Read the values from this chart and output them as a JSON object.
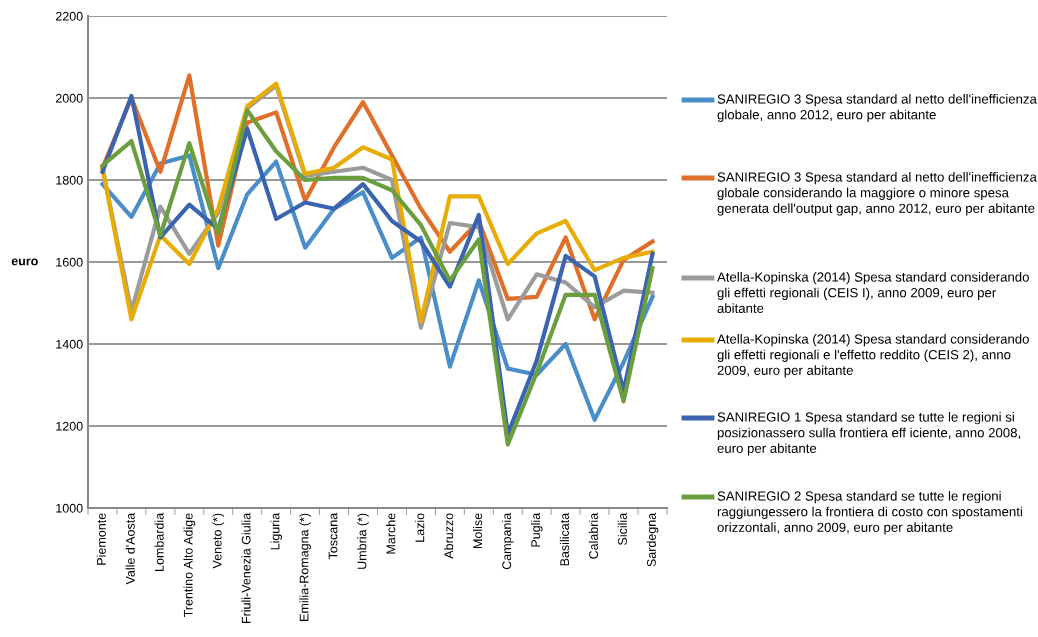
{
  "chart_data": {
    "type": "line",
    "ylabel": "euro",
    "categories": [
      "Piemonte",
      "Valle d'Aosta",
      "Lombardia",
      "Trentino Alto Adige",
      "Veneto (*)",
      "Friuli-Venezia Giulia",
      "Liguria",
      "Emilia-Romagna (*)",
      "Toscana",
      "Umbria (*)",
      "Marche",
      "Lazio",
      "Abruzzo",
      "Molise",
      "Campania",
      "Puglia",
      "Basilicata",
      "Calabria",
      "Sicilia",
      "Sardegna"
    ],
    "series": [
      {
        "name": "SANIREGIO 3 Spesa standard al netto dell'inefficienza globale, anno 2012, euro per abitante",
        "color": "#4a8ec9",
        "values": [
          1790,
          1710,
          1840,
          1860,
          1585,
          1765,
          1845,
          1635,
          1730,
          1770,
          1610,
          1660,
          1345,
          1555,
          1340,
          1325,
          1400,
          1215,
          1355,
          1515
        ]
      },
      {
        "name": "SANIREGIO 3 Spesa standard al netto dell'inefficienza globale considerando la maggiore o minore spesa generata dell'output gap, anno 2012, euro per abitante",
        "color": "#e06f2a",
        "values": [
          1830,
          2000,
          1820,
          2055,
          1640,
          1940,
          1965,
          1750,
          1880,
          1990,
          1860,
          1730,
          1625,
          1700,
          1510,
          1515,
          1660,
          1460,
          1605,
          1650
        ]
      },
      {
        "name": "Atella-Kopinska (2014) Spesa standard considerando gli effetti regionali (CEIS I), anno 2009, euro per abitante",
        "color": "#9b9b9b",
        "values": [
          1830,
          1480,
          1735,
          1620,
          1720,
          1975,
          2030,
          1810,
          1820,
          1830,
          1800,
          1440,
          1695,
          1685,
          1460,
          1570,
          1550,
          1490,
          1530,
          1525
        ]
      },
      {
        "name": "Atella-Kopinska (2014) Spesa standard considerando gli effetti regionali e l'effetto reddito (CEIS 2), anno 2009, euro per abitante",
        "color": "#e8ac06",
        "values": [
          1830,
          1460,
          1665,
          1595,
          1730,
          1980,
          2035,
          1815,
          1830,
          1880,
          1850,
          1455,
          1760,
          1760,
          1595,
          1670,
          1700,
          1580,
          1610,
          1625
        ]
      },
      {
        "name": "SANIREGIO 1 Spesa standard se tutte le regioni si posizionassero sulla frontiera eff iciente, anno 2008, euro per abitante",
        "color": "#3a63b0",
        "values": [
          1820,
          2005,
          1660,
          1740,
          1680,
          1925,
          1705,
          1745,
          1730,
          1790,
          1700,
          1650,
          1540,
          1715,
          1180,
          1360,
          1615,
          1565,
          1285,
          1620
        ]
      },
      {
        "name": "SANIREGIO 2 Spesa standard se tutte le regioni raggiungessero la frontiera di costo con spostamenti orizzontali, anno 2009, euro per abitante",
        "color": "#6a9e3e",
        "values": [
          1835,
          1895,
          1665,
          1890,
          1670,
          1970,
          1870,
          1800,
          1805,
          1805,
          1775,
          1690,
          1555,
          1655,
          1155,
          1330,
          1520,
          1520,
          1260,
          1585
        ]
      }
    ],
    "ylim": [
      1000,
      2200
    ],
    "yticks": [
      1000,
      1200,
      1400,
      1600,
      1800,
      2000,
      2200
    ],
    "grid": "y",
    "legend": "right",
    "marker": "none",
    "line_style": "solid"
  }
}
